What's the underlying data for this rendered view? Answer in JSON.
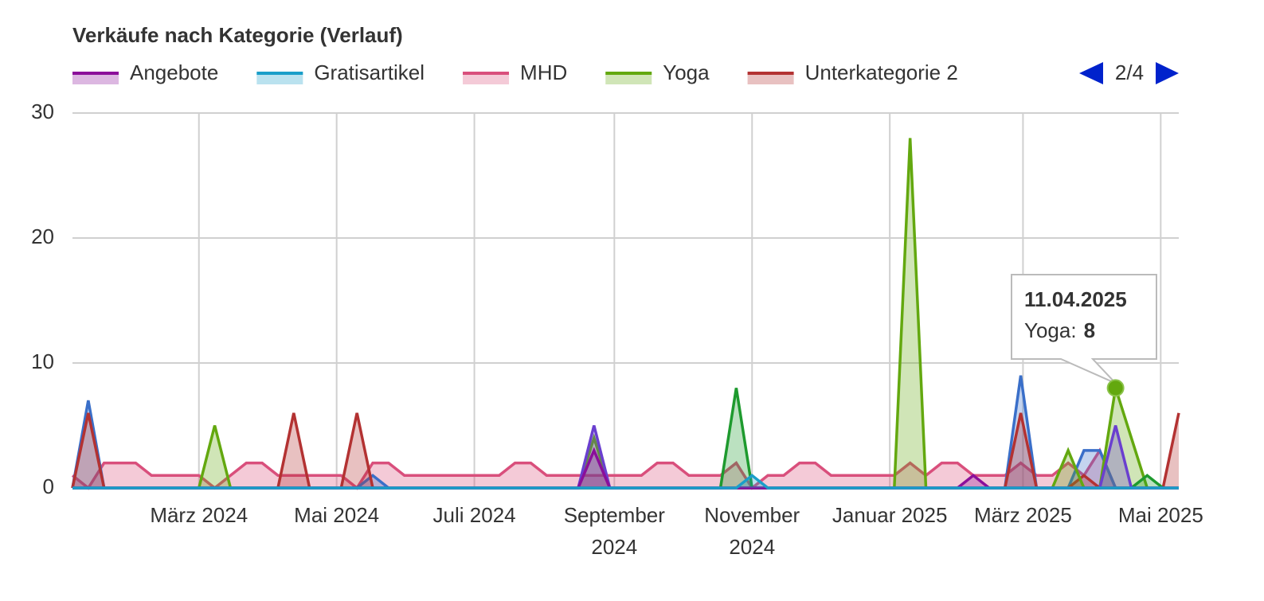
{
  "chart_data": {
    "type": "area",
    "title": "Verkäufe nach Kategorie (Verlauf)",
    "legend_page": "2/4",
    "x": [
      "2024-01-05",
      "2024-01-12",
      "2024-01-19",
      "2024-01-26",
      "2024-02-02",
      "2024-02-09",
      "2024-02-16",
      "2024-02-23",
      "2024-03-01",
      "2024-03-08",
      "2024-03-15",
      "2024-03-22",
      "2024-03-29",
      "2024-04-05",
      "2024-04-12",
      "2024-04-19",
      "2024-04-26",
      "2024-05-03",
      "2024-05-10",
      "2024-05-17",
      "2024-05-24",
      "2024-05-31",
      "2024-06-07",
      "2024-06-14",
      "2024-06-21",
      "2024-06-28",
      "2024-07-05",
      "2024-07-12",
      "2024-07-19",
      "2024-07-26",
      "2024-08-02",
      "2024-08-09",
      "2024-08-16",
      "2024-08-23",
      "2024-08-30",
      "2024-09-06",
      "2024-09-13",
      "2024-09-20",
      "2024-09-27",
      "2024-10-04",
      "2024-10-11",
      "2024-10-18",
      "2024-10-25",
      "2024-11-01",
      "2024-11-08",
      "2024-11-15",
      "2024-11-22",
      "2024-11-29",
      "2024-12-06",
      "2024-12-13",
      "2024-12-20",
      "2024-12-27",
      "2025-01-03",
      "2025-01-10",
      "2025-01-17",
      "2025-01-24",
      "2025-01-31",
      "2025-02-07",
      "2025-02-14",
      "2025-02-21",
      "2025-02-28",
      "2025-03-07",
      "2025-03-14",
      "2025-03-21",
      "2025-03-28",
      "2025-04-04",
      "2025-04-11",
      "2025-04-18",
      "2025-04-25",
      "2025-05-02",
      "2025-05-09"
    ],
    "xlim": [
      "2024-01-05",
      "2025-05-09"
    ],
    "xticks": [
      {
        "value": "2024-03-01",
        "label": "März 2024"
      },
      {
        "value": "2024-05-01",
        "label": "Mai 2024"
      },
      {
        "value": "2024-07-01",
        "label": "Juli 2024"
      },
      {
        "value": "2024-09-01",
        "label": "September 2024"
      },
      {
        "value": "2024-11-01",
        "label": "November 2024"
      },
      {
        "value": "2025-01-01",
        "label": "Januar 2025"
      },
      {
        "value": "2025-03-01",
        "label": "März 2025"
      },
      {
        "value": "2025-05-01",
        "label": "Mai 2025"
      }
    ],
    "ylim": [
      0,
      30
    ],
    "yticks": [
      0,
      10,
      20,
      30
    ],
    "grid": true,
    "series": [
      {
        "color": "#d94f7c",
        "name": "MHD",
        "values": [
          1,
          0,
          2,
          2,
          2,
          1,
          1,
          1,
          1,
          0,
          1,
          2,
          2,
          1,
          1,
          1,
          1,
          1,
          0,
          2,
          2,
          1,
          1,
          1,
          1,
          1,
          1,
          1,
          2,
          2,
          1,
          1,
          1,
          1,
          1,
          1,
          1,
          2,
          2,
          1,
          1,
          1,
          2,
          0,
          1,
          1,
          2,
          2,
          1,
          1,
          1,
          1,
          1,
          2,
          1,
          2,
          2,
          1,
          1,
          1,
          2,
          1,
          1,
          2,
          1,
          3,
          0,
          0,
          0,
          0,
          0
        ]
      },
      {
        "color": "#3a6fc9",
        "values": [
          0,
          7,
          0,
          0,
          0,
          0,
          0,
          0,
          0,
          0,
          0,
          0,
          0,
          0,
          0,
          0,
          0,
          0,
          0,
          1,
          0,
          0,
          0,
          0,
          0,
          0,
          0,
          0,
          0,
          0,
          0,
          0,
          0,
          0,
          0,
          0,
          0,
          0,
          0,
          0,
          0,
          0,
          0,
          0,
          0,
          0,
          0,
          0,
          0,
          0,
          0,
          0,
          0,
          0,
          0,
          0,
          0,
          0,
          0,
          0,
          9,
          0,
          0,
          0,
          3,
          3,
          0,
          0,
          0,
          0,
          0
        ]
      },
      {
        "color": "#b33232",
        "name": "Unterkategorie 2",
        "values": [
          0,
          6,
          0,
          0,
          0,
          0,
          0,
          0,
          0,
          0,
          0,
          0,
          0,
          0,
          6,
          0,
          0,
          0,
          6,
          0,
          0,
          0,
          0,
          0,
          0,
          0,
          0,
          0,
          0,
          0,
          0,
          0,
          0,
          0,
          0,
          0,
          0,
          0,
          0,
          0,
          0,
          0,
          0,
          0,
          0,
          0,
          0,
          0,
          0,
          0,
          0,
          0,
          0,
          0,
          0,
          0,
          0,
          0,
          0,
          0,
          6,
          0,
          0,
          0,
          1,
          0,
          0,
          0,
          0,
          0,
          6
        ]
      },
      {
        "color": "#63a80f",
        "name": "Yoga",
        "values": [
          0,
          0,
          0,
          0,
          0,
          0,
          0,
          0,
          0,
          5,
          0,
          0,
          0,
          0,
          0,
          0,
          0,
          0,
          0,
          0,
          0,
          0,
          0,
          0,
          0,
          0,
          0,
          0,
          0,
          0,
          0,
          0,
          0,
          4,
          0,
          0,
          0,
          0,
          0,
          0,
          0,
          0,
          0,
          0,
          0,
          0,
          0,
          0,
          0,
          0,
          0,
          0,
          0,
          28,
          0,
          0,
          0,
          0,
          0,
          0,
          0,
          0,
          0,
          3,
          0,
          0,
          8,
          4,
          0,
          0,
          0
        ]
      },
      {
        "color": "#1e9a2e",
        "values": [
          0,
          0,
          0,
          0,
          0,
          0,
          0,
          0,
          0,
          0,
          0,
          0,
          0,
          0,
          0,
          0,
          0,
          0,
          0,
          0,
          0,
          0,
          0,
          0,
          0,
          0,
          0,
          0,
          0,
          0,
          0,
          0,
          0,
          0,
          0,
          0,
          0,
          0,
          0,
          0,
          0,
          0,
          8,
          0,
          0,
          0,
          0,
          0,
          0,
          0,
          0,
          0,
          0,
          0,
          0,
          0,
          0,
          0,
          0,
          0,
          0,
          0,
          0,
          0,
          0,
          0,
          0,
          0,
          1,
          0,
          0
        ]
      },
      {
        "color": "#6a3fcf",
        "values": [
          0,
          0,
          0,
          0,
          0,
          0,
          0,
          0,
          0,
          0,
          0,
          0,
          0,
          0,
          0,
          0,
          0,
          0,
          0,
          0,
          0,
          0,
          0,
          0,
          0,
          0,
          0,
          0,
          0,
          0,
          0,
          0,
          0,
          5,
          0,
          0,
          0,
          0,
          0,
          0,
          0,
          0,
          0,
          0,
          0,
          0,
          0,
          0,
          0,
          0,
          0,
          0,
          0,
          0,
          0,
          0,
          0,
          0,
          0,
          0,
          0,
          0,
          0,
          0,
          0,
          0,
          5,
          0,
          0,
          0,
          0
        ]
      },
      {
        "color": "#8b0f9a",
        "name": "Angebote",
        "values": [
          0,
          0,
          0,
          0,
          0,
          0,
          0,
          0,
          0,
          0,
          0,
          0,
          0,
          0,
          0,
          0,
          0,
          0,
          0,
          0,
          0,
          0,
          0,
          0,
          0,
          0,
          0,
          0,
          0,
          0,
          0,
          0,
          0,
          3,
          0,
          0,
          0,
          0,
          0,
          0,
          0,
          0,
          0,
          0,
          0,
          0,
          0,
          0,
          0,
          0,
          0,
          0,
          0,
          0,
          0,
          0,
          0,
          1,
          0,
          0,
          0,
          0,
          0,
          0,
          0,
          0,
          0,
          0,
          0,
          0,
          0
        ]
      },
      {
        "color": "#1a9ec9",
        "name": "Gratisartikel",
        "values": [
          0,
          0,
          0,
          0,
          0,
          0,
          0,
          0,
          0,
          0,
          0,
          0,
          0,
          0,
          0,
          0,
          0,
          0,
          0,
          0,
          0,
          0,
          0,
          0,
          0,
          0,
          0,
          0,
          0,
          0,
          0,
          0,
          0,
          0,
          0,
          0,
          0,
          0,
          0,
          0,
          0,
          0,
          0,
          1,
          0,
          0,
          0,
          0,
          0,
          0,
          0,
          0,
          0,
          0,
          0,
          0,
          0,
          0,
          0,
          0,
          0,
          0,
          0,
          0,
          0,
          0,
          0,
          0,
          0,
          0,
          0
        ]
      }
    ],
    "legend_order": [
      6,
      7,
      0,
      3,
      2
    ],
    "tooltip": {
      "series": 3,
      "point": 66,
      "date": "11.04.2025",
      "label": "Yoga:"
    }
  }
}
